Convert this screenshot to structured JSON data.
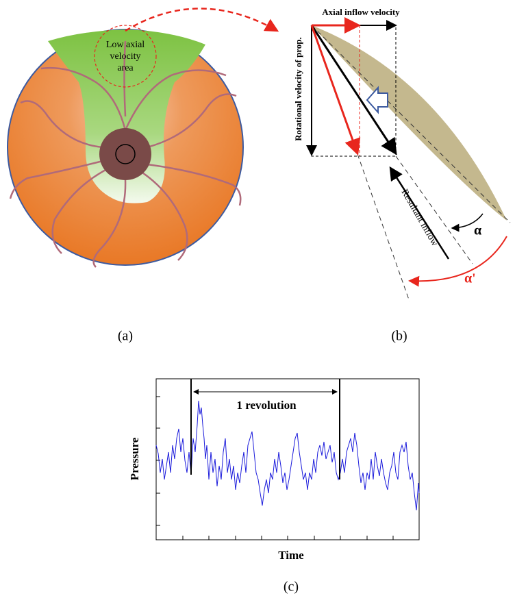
{
  "panel_a": {
    "label": "(a)",
    "region_label": [
      "Low axial",
      "velocity",
      "area"
    ]
  },
  "panel_b": {
    "label": "(b)",
    "axial_label": "Axial inflow velocity",
    "rotational_label": "Rotational velocity of prop.",
    "resultant_label": "Resultant inflow",
    "angle_label": "α",
    "angle_label_2": "α'"
  },
  "panel_c": {
    "label": "(c)",
    "revolution_label": "1 revolution",
    "y_label": "Pressure",
    "x_label": "Time"
  }
}
